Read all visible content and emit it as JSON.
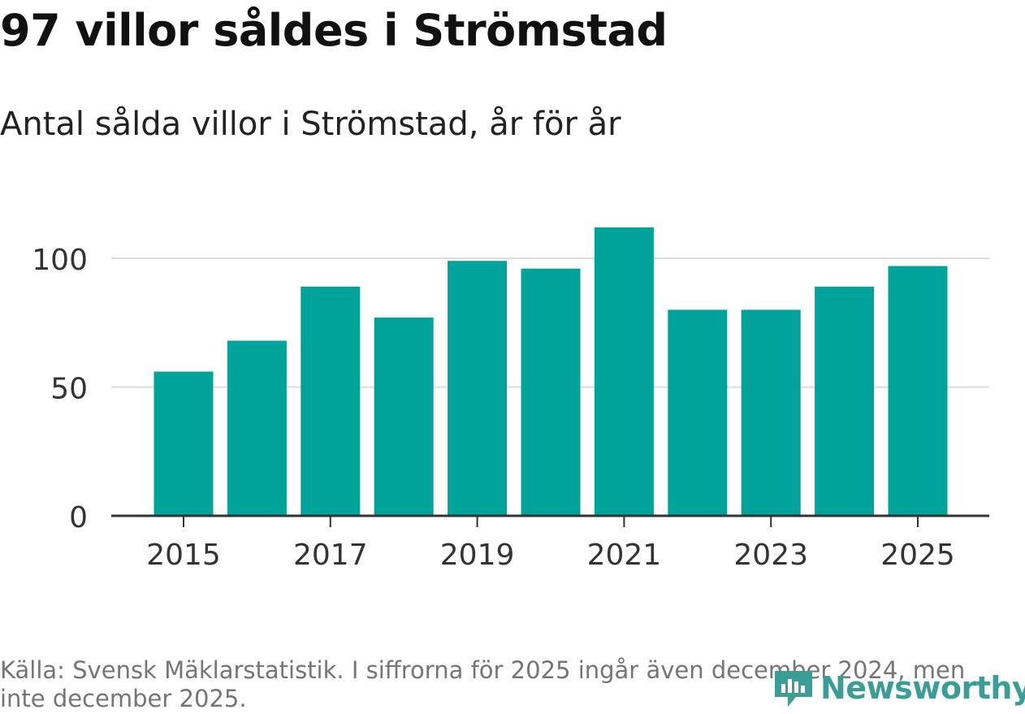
{
  "chart_data": {
    "type": "bar",
    "title": "97 villor såldes i Strömstad",
    "subtitle": "Antal sålda villor i Strömstad, år för år",
    "categories": [
      "2015",
      "2016",
      "2017",
      "2018",
      "2019",
      "2020",
      "2021",
      "2022",
      "2023",
      "2024",
      "2025"
    ],
    "values": [
      56,
      68,
      89,
      77,
      99,
      96,
      112,
      80,
      80,
      89,
      97
    ],
    "xticks": [
      "2015",
      "2017",
      "2019",
      "2021",
      "2023",
      "2025"
    ],
    "yticks": [
      0,
      50,
      100
    ],
    "ylim": [
      0,
      120
    ],
    "xlabel": "",
    "ylabel": "",
    "grid": true,
    "bar_color": "#00a39a"
  },
  "source": "Källa: Svensk Mäklarstatistik. I siffrorna för 2025 ingår även december 2024, men inte december 2025.",
  "logo": {
    "text": "Newsworthy",
    "icon": "newsworthy-logo-icon",
    "color": "#3a9e96"
  }
}
